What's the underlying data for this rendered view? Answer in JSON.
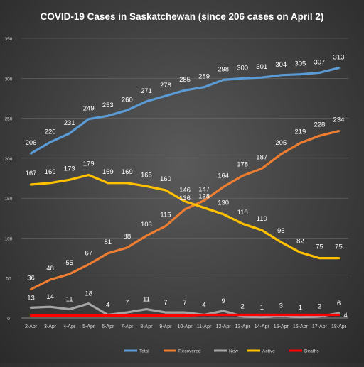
{
  "chart_data": {
    "type": "line",
    "title": "COVID-19 Cases in Saskatchewan (since 206 cases on April 2)",
    "xlabel": "",
    "ylabel": "",
    "ylim": [
      0,
      350
    ],
    "yticks": [
      0,
      50,
      100,
      150,
      200,
      250,
      300,
      350
    ],
    "grid": true,
    "legend_position": "bottom",
    "categories": [
      "2-Apr",
      "3-Apr",
      "4-Apr",
      "5-Apr",
      "6-Apr",
      "7-Apr",
      "8-Apr",
      "9-Apr",
      "10-Apr",
      "11-Apr",
      "12-Apr",
      "13-Apr",
      "14-Apr",
      "15-Apr",
      "16-Apr",
      "17-Apr",
      "18-Apr"
    ],
    "series": [
      {
        "name": "Total",
        "color": "#5b9bd5",
        "labeled": true,
        "values": [
          206,
          220,
          231,
          249,
          253,
          260,
          271,
          278,
          285,
          289,
          298,
          300,
          301,
          304,
          305,
          307,
          313
        ]
      },
      {
        "name": "Recovered",
        "color": "#ed7d31",
        "labeled": true,
        "values": [
          36,
          48,
          55,
          67,
          81,
          88,
          103,
          115,
          136,
          147,
          164,
          178,
          187,
          205,
          219,
          228,
          234
        ]
      },
      {
        "name": "New",
        "color": "#a5a5a5",
        "labeled": true,
        "values": [
          13,
          14,
          11,
          18,
          4,
          7,
          11,
          7,
          7,
          4,
          9,
          2,
          1,
          3,
          1,
          2,
          6
        ]
      },
      {
        "name": "Active",
        "color": "#ffc000",
        "labeled": true,
        "values": [
          167,
          169,
          173,
          179,
          169,
          169,
          165,
          160,
          146,
          138,
          130,
          118,
          110,
          95,
          82,
          75,
          75
        ]
      },
      {
        "name": "Deaths",
        "color": "#ff0000",
        "labeled": false,
        "values": [
          3,
          3,
          3,
          3,
          3,
          3,
          3,
          3,
          3,
          4,
          4,
          4,
          4,
          4,
          4,
          4,
          4
        ]
      }
    ],
    "end_labels": [
      {
        "series": "Deaths",
        "text": "4"
      }
    ]
  }
}
